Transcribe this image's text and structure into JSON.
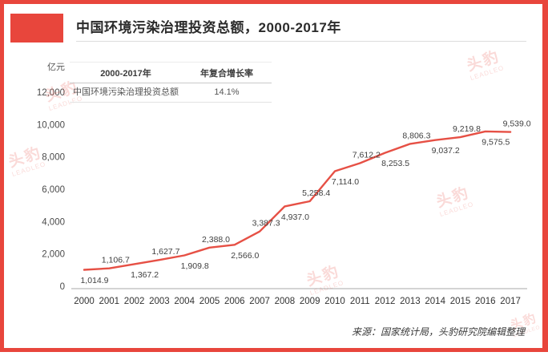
{
  "page": {
    "title": "中国环境污染治理投资总额，2000-2017年",
    "source_note": "来源：国家统计局，头豹研究院编辑整理",
    "accent_color": "#e8463c",
    "border_color": "#e8463c"
  },
  "watermark": {
    "cn": "头豹",
    "en": "LEADLEO"
  },
  "summary_table": {
    "headers": [
      "2000-2017年",
      "年复合增长率"
    ],
    "row": {
      "label": "中国环境污染治理投资总额",
      "value": "14.1%"
    }
  },
  "chart_data": {
    "type": "line",
    "title": "中国环境污染治理投资总额，2000-2017年",
    "unit_label": "亿元",
    "xlabel": "",
    "ylabel": "亿元",
    "x": [
      2000,
      2001,
      2002,
      2003,
      2004,
      2005,
      2006,
      2007,
      2008,
      2009,
      2010,
      2011,
      2012,
      2013,
      2014,
      2015,
      2016,
      2017
    ],
    "series": [
      {
        "name": "中国环境污染治理投资总额",
        "values": [
          1014.9,
          1106.7,
          1367.2,
          1627.7,
          1909.8,
          2388.0,
          2566.0,
          3387.3,
          4937.0,
          5258.4,
          7114.0,
          7612.2,
          8253.5,
          8806.3,
          9037.2,
          9219.8,
          9575.5,
          9539.0
        ]
      }
    ],
    "cagr": "14.1%",
    "ylim": [
      0,
      12000
    ],
    "y_ticks": [
      0,
      2000,
      4000,
      6000,
      8000,
      10000,
      12000
    ],
    "grid": false,
    "legend_position": "none",
    "data_labels": true,
    "line_color": "#e65045",
    "axis_color": "#a9a9a9"
  }
}
